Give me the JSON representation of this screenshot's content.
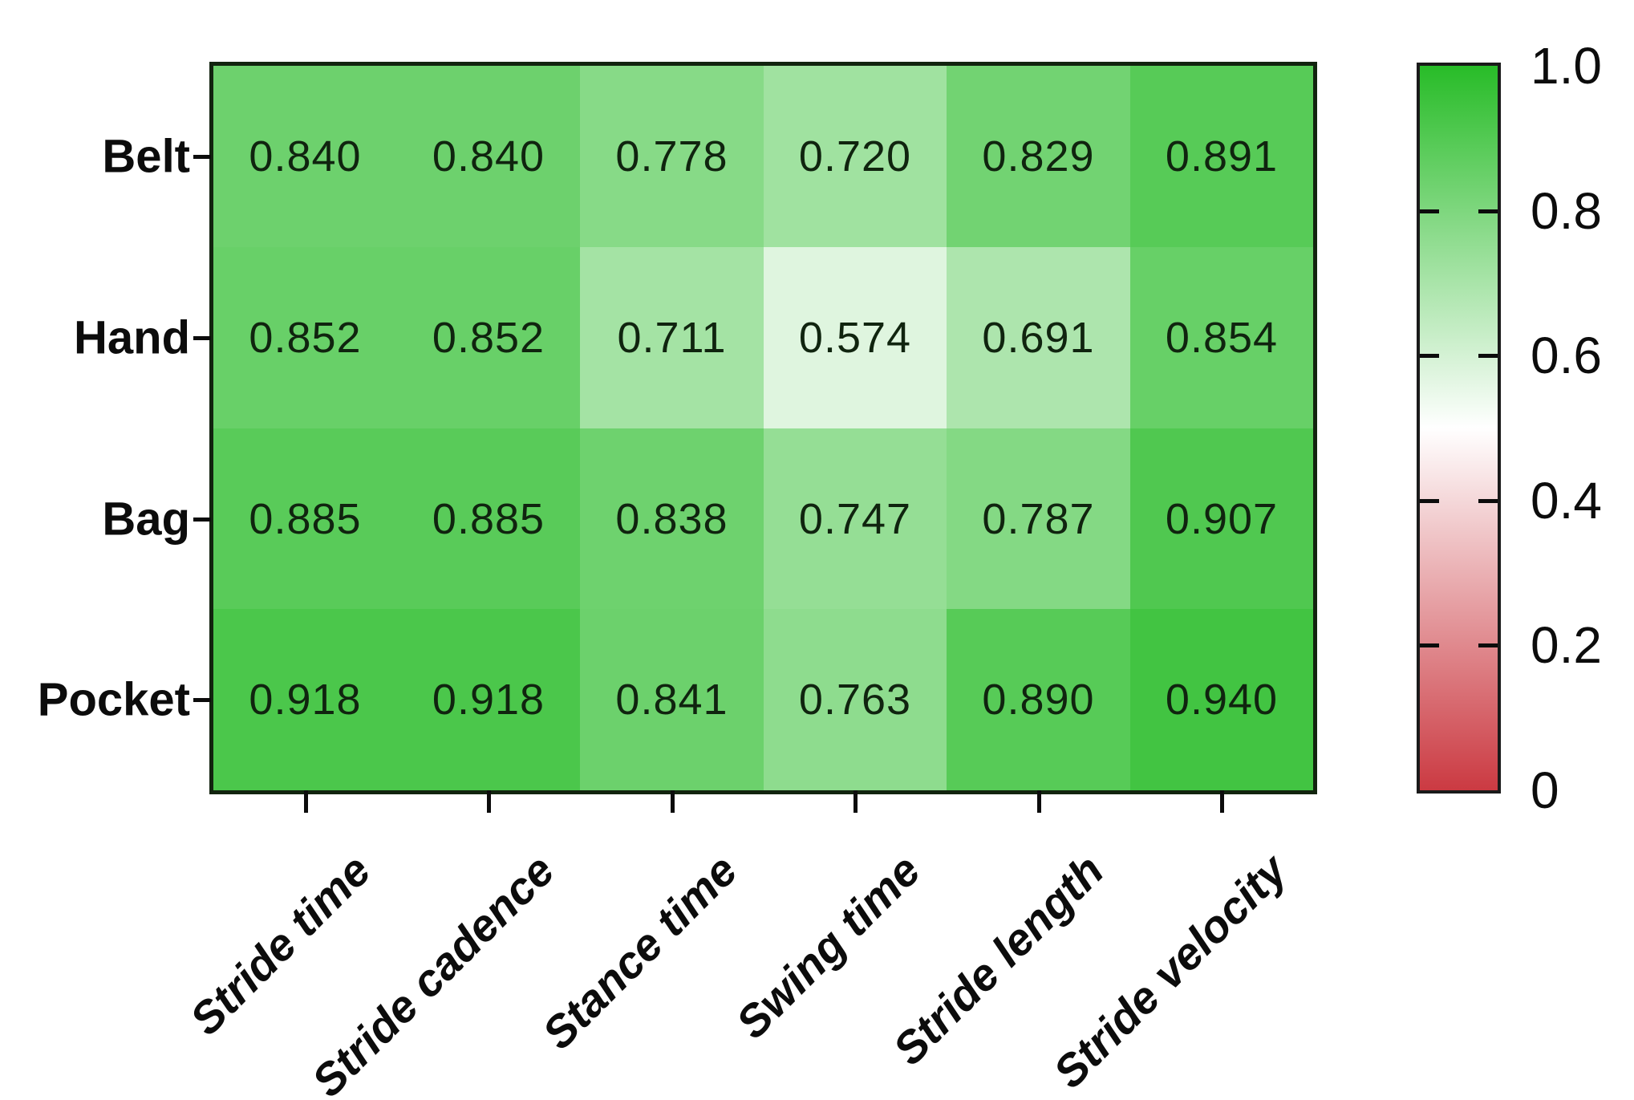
{
  "chart_data": {
    "type": "heatmap",
    "title": "",
    "rows": [
      "Belt",
      "Hand",
      "Bag",
      "Pocket"
    ],
    "columns": [
      "Stride time",
      "Stride cadence",
      "Stance time",
      "Swing time",
      "Stride length",
      "Stride velocity"
    ],
    "values": [
      [
        "0.840",
        "0.840",
        "0.778",
        "0.720",
        "0.829",
        "0.891"
      ],
      [
        "0.852",
        "0.852",
        "0.711",
        "0.574",
        "0.691",
        "0.854"
      ],
      [
        "0.885",
        "0.885",
        "0.838",
        "0.747",
        "0.787",
        "0.907"
      ],
      [
        "0.918",
        "0.918",
        "0.841",
        "0.763",
        "0.890",
        "0.940"
      ]
    ],
    "value_range": [
      0,
      1
    ],
    "colormap": "red-white-green",
    "grid": false,
    "legend_position": "right-colorbar",
    "colorbar": {
      "tick_labels": [
        "1.0",
        "0.8",
        "0.6",
        "0.4",
        "0.2",
        "0"
      ],
      "tick_values": [
        1.0,
        0.8,
        0.6,
        0.4,
        0.2,
        0
      ],
      "min": 0,
      "max": 1,
      "colors": {
        "high": "#28bc28",
        "mid": "#ffffff",
        "low": "#cb3a42"
      }
    }
  }
}
